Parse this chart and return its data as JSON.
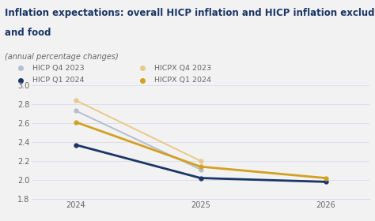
{
  "title_line1": "Inflation expectations: overall HICP inflation and HICP inflation excluding energy",
  "title_line2": "and food",
  "subtitle": "(annual percentage changes)",
  "x_labels": [
    "2024",
    "2025",
    "2026"
  ],
  "series": {
    "HICP Q4 2023": {
      "values": [
        2.73,
        2.11,
        null
      ],
      "color": "#b5bece",
      "linewidth": 1.4,
      "marker": "o",
      "markersize": 3.5,
      "zorder": 2
    },
    "HICP Q1 2024": {
      "values": [
        2.37,
        2.02,
        1.98
      ],
      "color": "#1a3566",
      "linewidth": 2.0,
      "marker": "o",
      "markersize": 3.5,
      "zorder": 3
    },
    "HICPX Q4 2023": {
      "values": [
        2.84,
        2.2,
        null
      ],
      "color": "#e8c98a",
      "linewidth": 1.4,
      "marker": "o",
      "markersize": 3.5,
      "zorder": 2
    },
    "HICPX Q1 2024": {
      "values": [
        2.61,
        2.14,
        2.02
      ],
      "color": "#d4a020",
      "linewidth": 2.0,
      "marker": "o",
      "markersize": 3.5,
      "zorder": 3
    }
  },
  "legend_order": [
    "HICP Q4 2023",
    "HICPX Q4 2023",
    "HICP Q1 2024",
    "HICPX Q1 2024"
  ],
  "ylim": [
    1.8,
    3.0
  ],
  "yticks": [
    1.8,
    2.0,
    2.2,
    2.4,
    2.6,
    2.8,
    3.0
  ],
  "bg_color": "#f2f2f2",
  "plot_bg": "#f2f2f2",
  "title_color": "#1a3566",
  "text_color": "#666666",
  "grid_color": "#d8dde6",
  "top_bar_color": "#1a3566",
  "bottom_bar_color": "#1a3566",
  "sep_line_color": "#c8c8c8",
  "title_fontsize": 8.5,
  "subtitle_fontsize": 7.0,
  "tick_fontsize": 7.0,
  "legend_fontsize": 6.8
}
